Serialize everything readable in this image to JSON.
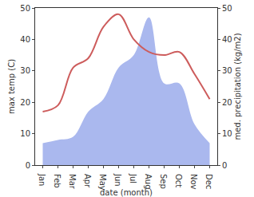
{
  "chart_data": {
    "type": "line",
    "xlabel": "date (month)",
    "ylabel": "max temp (C)",
    "y2label": "med. precipitation (kg/m2)",
    "categories": [
      "Jan",
      "Feb",
      "Mar",
      "Apr",
      "May",
      "Jun",
      "Jul",
      "Aug",
      "Sep",
      "Oct",
      "Nov",
      "Dec"
    ],
    "series": [
      {
        "name": "med. precipitation",
        "type": "area",
        "axis": "y2",
        "color": "#aab8ee",
        "line_style": "spline",
        "values": [
          7,
          8,
          9,
          17,
          21,
          31,
          35,
          47,
          26,
          26,
          13,
          7
        ]
      },
      {
        "name": "max temp",
        "type": "line",
        "axis": "y",
        "color": "#cd5c5c",
        "line_style": "spline",
        "values": [
          17,
          19,
          31,
          34,
          44,
          48,
          40,
          36,
          35,
          36,
          29,
          21
        ]
      }
    ],
    "ylim": [
      0,
      50
    ],
    "yticks": [
      0,
      10,
      20,
      30,
      40,
      50
    ],
    "y2lim": [
      0,
      50
    ],
    "y2ticks": [
      0,
      10,
      20,
      30,
      40,
      50
    ],
    "grid": false
  }
}
